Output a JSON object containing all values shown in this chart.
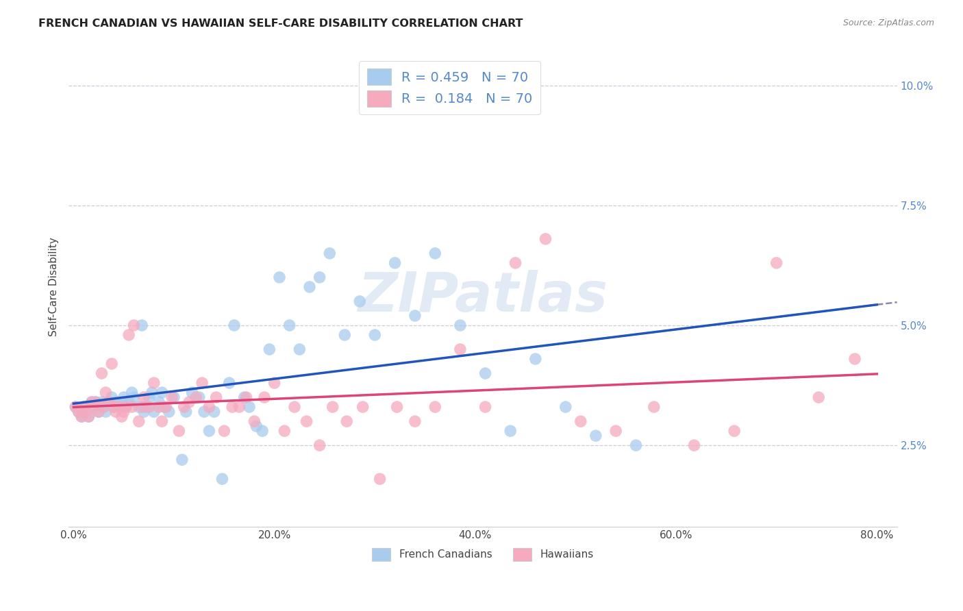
{
  "title": "FRENCH CANADIAN VS HAWAIIAN SELF-CARE DISABILITY CORRELATION CHART",
  "source": "Source: ZipAtlas.com",
  "ylabel": "Self-Care Disability",
  "xlabel_ticks": [
    "0.0%",
    "20.0%",
    "40.0%",
    "60.0%",
    "80.0%"
  ],
  "xlabel_vals": [
    0.0,
    0.2,
    0.4,
    0.6,
    0.8
  ],
  "ylabel_ticks": [
    "2.5%",
    "5.0%",
    "7.5%",
    "10.0%"
  ],
  "ylabel_vals": [
    0.025,
    0.05,
    0.075,
    0.1
  ],
  "xlim": [
    -0.005,
    0.82
  ],
  "ylim": [
    0.008,
    0.108
  ],
  "french_r": 0.459,
  "french_n": 70,
  "hawaiian_r": 0.184,
  "hawaiian_n": 70,
  "french_color": "#A8CCEE",
  "hawaiian_color": "#F5AABE",
  "french_line_color": "#2255BB",
  "hawaiian_line_color": "#DD4477",
  "trend_line_color": "#8888AA",
  "background_color": "#FFFFFF",
  "grid_color": "#CCCCDD",
  "watermark": "ZIPatlas",
  "tick_color": "#5588CC",
  "french_canadians_x": [
    0.002,
    0.005,
    0.008,
    0.01,
    0.012,
    0.015,
    0.018,
    0.02,
    0.022,
    0.025,
    0.028,
    0.03,
    0.032,
    0.035,
    0.038,
    0.04,
    0.042,
    0.045,
    0.048,
    0.05,
    0.052,
    0.055,
    0.058,
    0.06,
    0.065,
    0.068,
    0.07,
    0.072,
    0.075,
    0.078,
    0.08,
    0.085,
    0.088,
    0.09,
    0.095,
    0.1,
    0.108,
    0.112,
    0.118,
    0.125,
    0.13,
    0.135,
    0.14,
    0.148,
    0.155,
    0.16,
    0.17,
    0.175,
    0.182,
    0.188,
    0.195,
    0.205,
    0.215,
    0.225,
    0.235,
    0.245,
    0.255,
    0.27,
    0.285,
    0.3,
    0.32,
    0.34,
    0.36,
    0.385,
    0.41,
    0.435,
    0.46,
    0.49,
    0.52,
    0.56
  ],
  "french_canadians_y": [
    0.033,
    0.032,
    0.031,
    0.033,
    0.032,
    0.031,
    0.034,
    0.033,
    0.034,
    0.032,
    0.034,
    0.033,
    0.032,
    0.034,
    0.035,
    0.033,
    0.034,
    0.033,
    0.034,
    0.035,
    0.033,
    0.034,
    0.036,
    0.035,
    0.033,
    0.05,
    0.032,
    0.033,
    0.035,
    0.036,
    0.032,
    0.034,
    0.036,
    0.033,
    0.032,
    0.035,
    0.022,
    0.032,
    0.036,
    0.035,
    0.032,
    0.028,
    0.032,
    0.018,
    0.038,
    0.05,
    0.035,
    0.033,
    0.029,
    0.028,
    0.045,
    0.06,
    0.05,
    0.045,
    0.058,
    0.06,
    0.065,
    0.048,
    0.055,
    0.048,
    0.063,
    0.052,
    0.065,
    0.05,
    0.04,
    0.028,
    0.043,
    0.033,
    0.027,
    0.025
  ],
  "hawaiians_x": [
    0.002,
    0.005,
    0.008,
    0.01,
    0.012,
    0.015,
    0.018,
    0.02,
    0.022,
    0.025,
    0.028,
    0.03,
    0.032,
    0.035,
    0.038,
    0.04,
    0.042,
    0.045,
    0.048,
    0.05,
    0.052,
    0.055,
    0.058,
    0.06,
    0.065,
    0.068,
    0.07,
    0.075,
    0.08,
    0.085,
    0.088,
    0.092,
    0.098,
    0.105,
    0.11,
    0.115,
    0.122,
    0.128,
    0.135,
    0.142,
    0.15,
    0.158,
    0.165,
    0.172,
    0.18,
    0.19,
    0.2,
    0.21,
    0.22,
    0.232,
    0.245,
    0.258,
    0.272,
    0.288,
    0.305,
    0.322,
    0.34,
    0.36,
    0.385,
    0.41,
    0.44,
    0.47,
    0.505,
    0.54,
    0.578,
    0.618,
    0.658,
    0.7,
    0.742,
    0.778
  ],
  "hawaiians_y": [
    0.033,
    0.032,
    0.031,
    0.033,
    0.032,
    0.031,
    0.034,
    0.033,
    0.034,
    0.032,
    0.04,
    0.033,
    0.036,
    0.034,
    0.042,
    0.033,
    0.032,
    0.033,
    0.031,
    0.032,
    0.033,
    0.048,
    0.033,
    0.05,
    0.03,
    0.033,
    0.035,
    0.033,
    0.038,
    0.033,
    0.03,
    0.033,
    0.035,
    0.028,
    0.033,
    0.034,
    0.035,
    0.038,
    0.033,
    0.035,
    0.028,
    0.033,
    0.033,
    0.035,
    0.03,
    0.035,
    0.038,
    0.028,
    0.033,
    0.03,
    0.025,
    0.033,
    0.03,
    0.033,
    0.018,
    0.033,
    0.03,
    0.033,
    0.045,
    0.033,
    0.063,
    0.068,
    0.03,
    0.028,
    0.033,
    0.025,
    0.028,
    0.063,
    0.035,
    0.043
  ]
}
